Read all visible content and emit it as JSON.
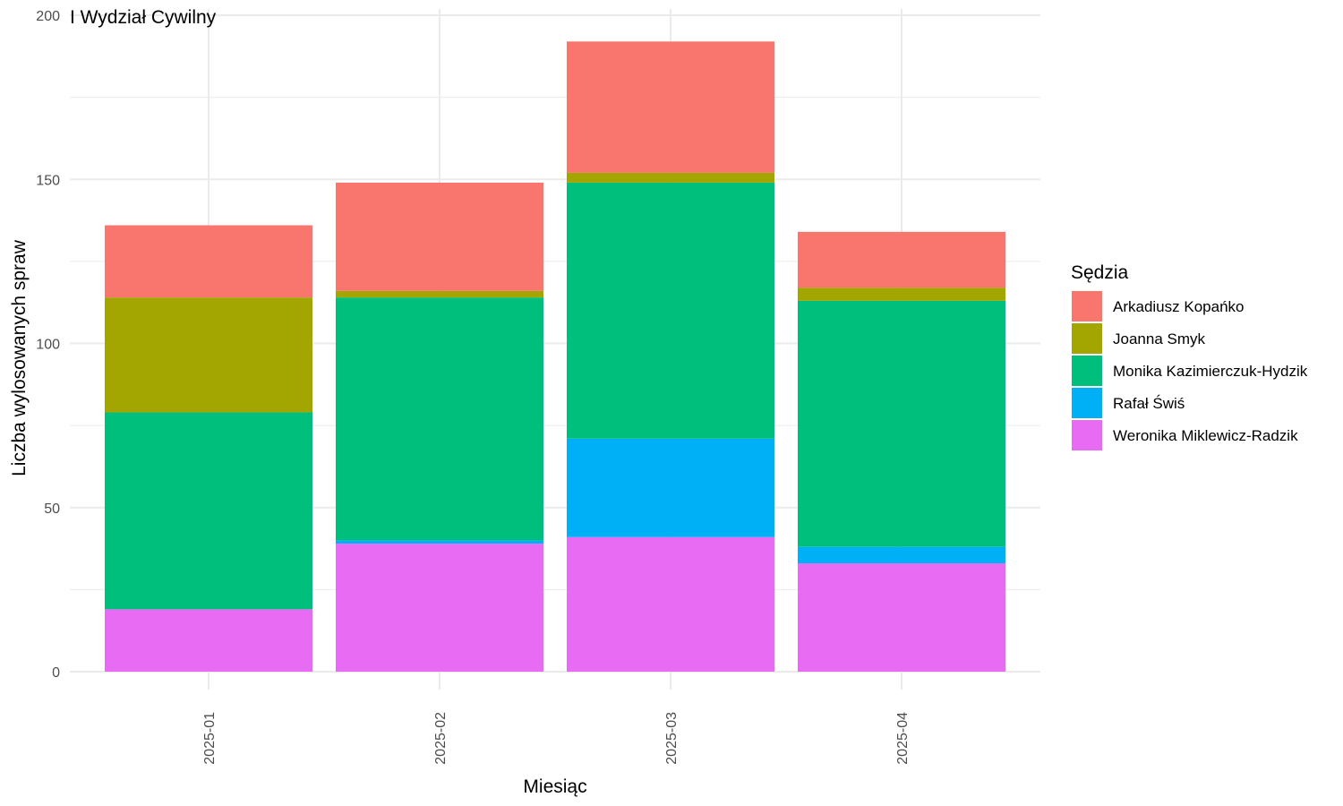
{
  "chart_data": {
    "type": "bar",
    "stacked": true,
    "title": "I Wydział Cywilny",
    "xlabel": "Miesiąc",
    "ylabel": "Liczba wylosowanych spraw",
    "categories": [
      "2025-01",
      "2025-02",
      "2025-03",
      "2025-04"
    ],
    "ylim": [
      0,
      200
    ],
    "yticks": [
      0,
      50,
      100,
      150,
      200
    ],
    "grid": true,
    "legend": {
      "title": "Sędzia",
      "placement": "right"
    },
    "series": [
      {
        "name": "Arkadiusz Kopańko",
        "color": "#F8766D",
        "values": [
          22,
          33,
          40,
          17
        ]
      },
      {
        "name": "Joanna Smyk",
        "color": "#A3A500",
        "values": [
          35,
          2,
          3,
          4
        ]
      },
      {
        "name": "Monika Kazimierczuk-Hydzik",
        "color": "#00BF7D",
        "values": [
          60,
          74,
          78,
          75
        ]
      },
      {
        "name": "Rafał Świś",
        "color": "#00B0F6",
        "values": [
          0,
          1,
          30,
          5
        ]
      },
      {
        "name": "Weronika Miklewicz-Radzik",
        "color": "#E76BF3",
        "values": [
          19,
          39,
          41,
          33
        ]
      }
    ]
  }
}
